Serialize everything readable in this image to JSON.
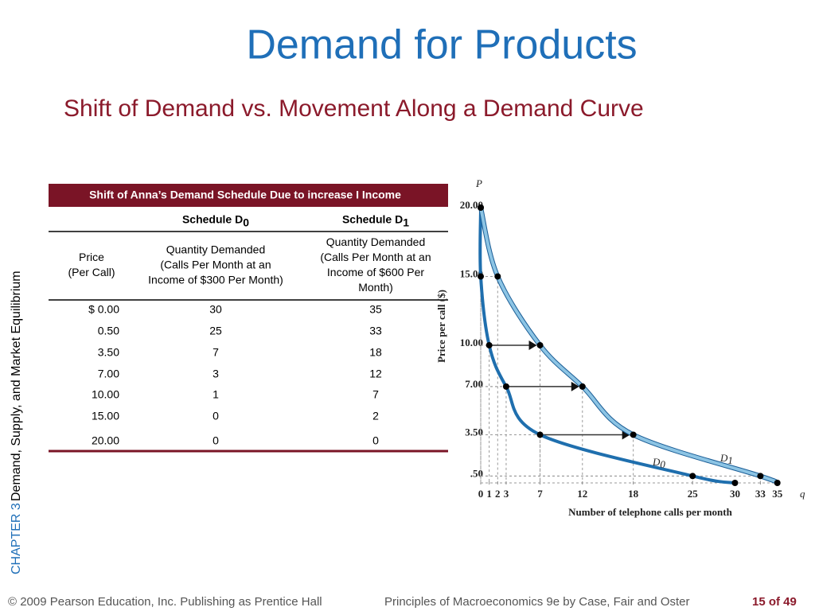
{
  "header": {
    "title": "Demand for Products",
    "subtitle": "Shift of Demand vs. Movement Along a Demand Curve"
  },
  "sidebar": {
    "chapter": "CHAPTER 3",
    "topic": "Demand, Supply, and Market Equilibrium"
  },
  "table": {
    "caption": "Shift of Anna’s Demand Schedule Due to increase I Income",
    "schedules": [
      {
        "text": "Schedule D",
        "sub": "0"
      },
      {
        "text": "Schedule D",
        "sub": "1"
      }
    ],
    "columns": [
      [
        "Price",
        "(Per Call)"
      ],
      [
        "Quantity Demanded",
        "(Calls Per Month at an",
        "Income of $300 Per Month)"
      ],
      [
        "Quantity Demanded",
        "(Calls Per Month at an",
        "Income of $600 Per",
        "Month)"
      ]
    ],
    "rows": [
      [
        "$ 0.00",
        "30",
        "35"
      ],
      [
        "0.50",
        "25",
        "33"
      ],
      [
        "3.50",
        "7",
        "18"
      ],
      [
        "7.00",
        "3",
        "12"
      ],
      [
        "10.00",
        "1",
        "7"
      ],
      [
        "15.00",
        "0",
        "2"
      ],
      [
        "20.00",
        "0",
        "0"
      ]
    ]
  },
  "chart_data": {
    "type": "line",
    "y_label": "P",
    "x_label": "q",
    "y_title": "Price per call ($)",
    "x_title": "Number of telephone calls per month",
    "series": [
      {
        "name": "D",
        "sub": "0",
        "color": "#1f6fae",
        "x": [
          0,
          0,
          1,
          3,
          7,
          25,
          30
        ],
        "values": [
          20,
          15,
          10,
          7,
          3.5,
          0.5,
          0
        ]
      },
      {
        "name": "D",
        "sub": "1",
        "color": "#8cc4e4",
        "x": [
          0,
          2,
          7,
          12,
          18,
          33,
          35
        ],
        "values": [
          20,
          15,
          10,
          7,
          3.5,
          0.5,
          0
        ]
      }
    ],
    "xlim": [
      0,
      37
    ],
    "ylim": [
      0,
      21.5
    ],
    "xticks": [
      0,
      1,
      2,
      3,
      7,
      12,
      18,
      25,
      30,
      33,
      35
    ],
    "yticks": [
      {
        "value": 0.5,
        "label": ".50"
      },
      {
        "value": 3.5,
        "label": "3.50"
      },
      {
        "value": 7,
        "label": "7.00"
      },
      {
        "value": 10,
        "label": "10.00"
      },
      {
        "value": 15,
        "label": "15.00"
      },
      {
        "value": 20,
        "label": "20.00"
      }
    ]
  },
  "footer": {
    "copyright": "© 2009 Pearson Education, Inc. Publishing as Prentice Hall",
    "book": "Principles of Macroeconomics 9e by Case, Fair and Oster",
    "page": "15 of 49"
  }
}
